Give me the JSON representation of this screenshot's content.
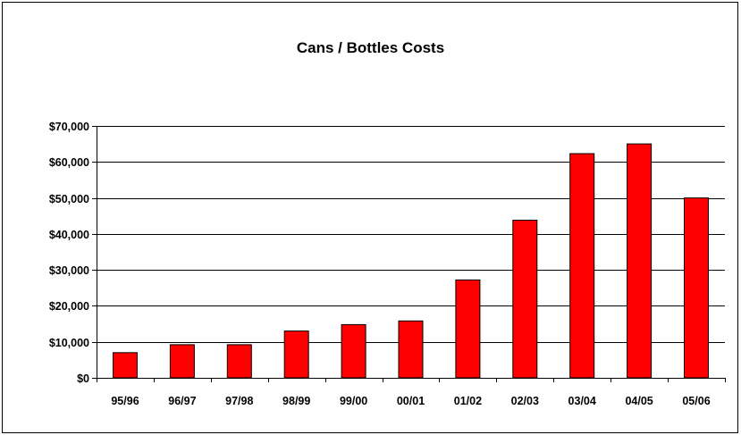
{
  "chart_data": {
    "type": "bar",
    "title": "Cans / Bottles Costs",
    "xlabel": "",
    "ylabel": "",
    "categories": [
      "95/96",
      "96/97",
      "97/98",
      "98/99",
      "99/00",
      "00/01",
      "01/02",
      "02/03",
      "03/04",
      "04/05",
      "05/06"
    ],
    "values": [
      7000,
      9200,
      9200,
      13000,
      14800,
      15800,
      27200,
      43800,
      62300,
      65000,
      50000
    ],
    "ylim": [
      0,
      70000
    ],
    "yticks": [
      0,
      10000,
      20000,
      30000,
      40000,
      50000,
      60000,
      70000
    ],
    "ytick_labels": [
      "$0",
      "$10,000",
      "$20,000",
      "$30,000",
      "$40,000",
      "$50,000",
      "$60,000",
      "$70,000"
    ],
    "grid": true,
    "legend": "none",
    "bar_color": "#ff0000",
    "edge_color": "#000000"
  }
}
